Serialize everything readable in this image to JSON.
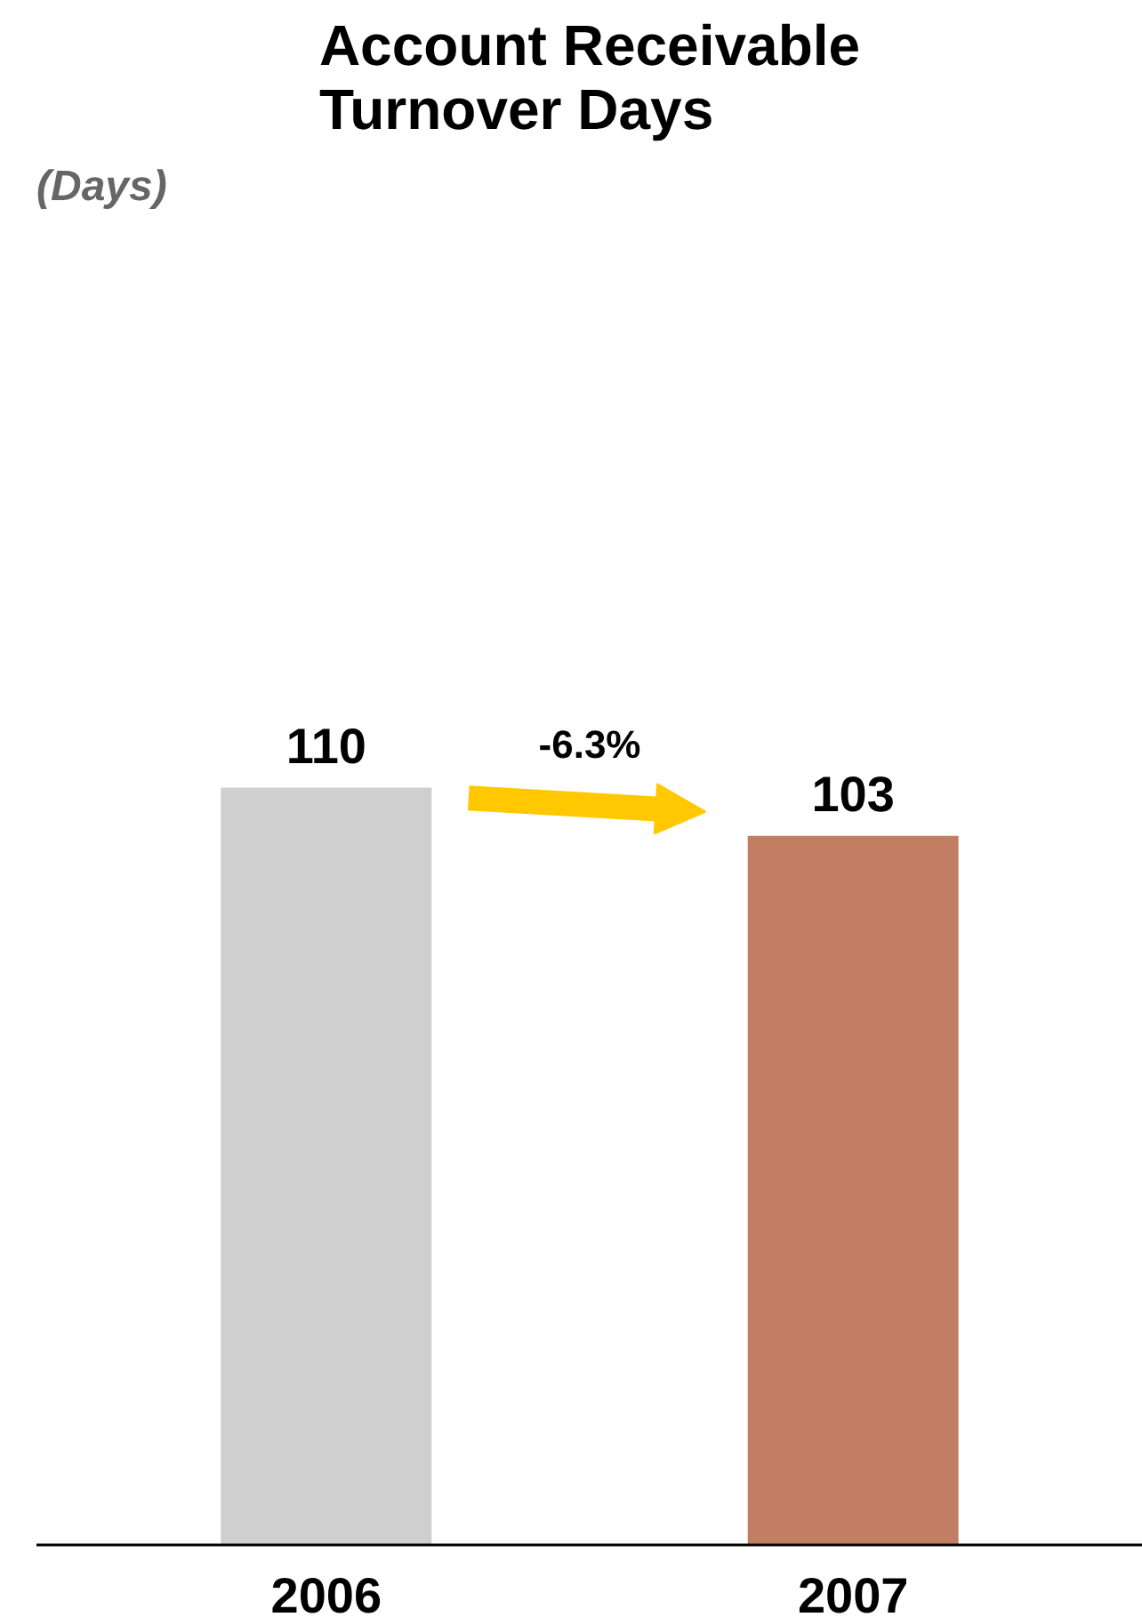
{
  "chart_data": {
    "type": "bar",
    "title": "Account Receivable\nTurnover Days",
    "categories": [
      "2006",
      "2007"
    ],
    "values": [
      110,
      103
    ],
    "colors": [
      "#cfcfcf",
      "#c27e62"
    ],
    "data_labels": true,
    "annotations": [
      "(Days)",
      "-6.3%"
    ],
    "grid": false,
    "legend": false
  }
}
